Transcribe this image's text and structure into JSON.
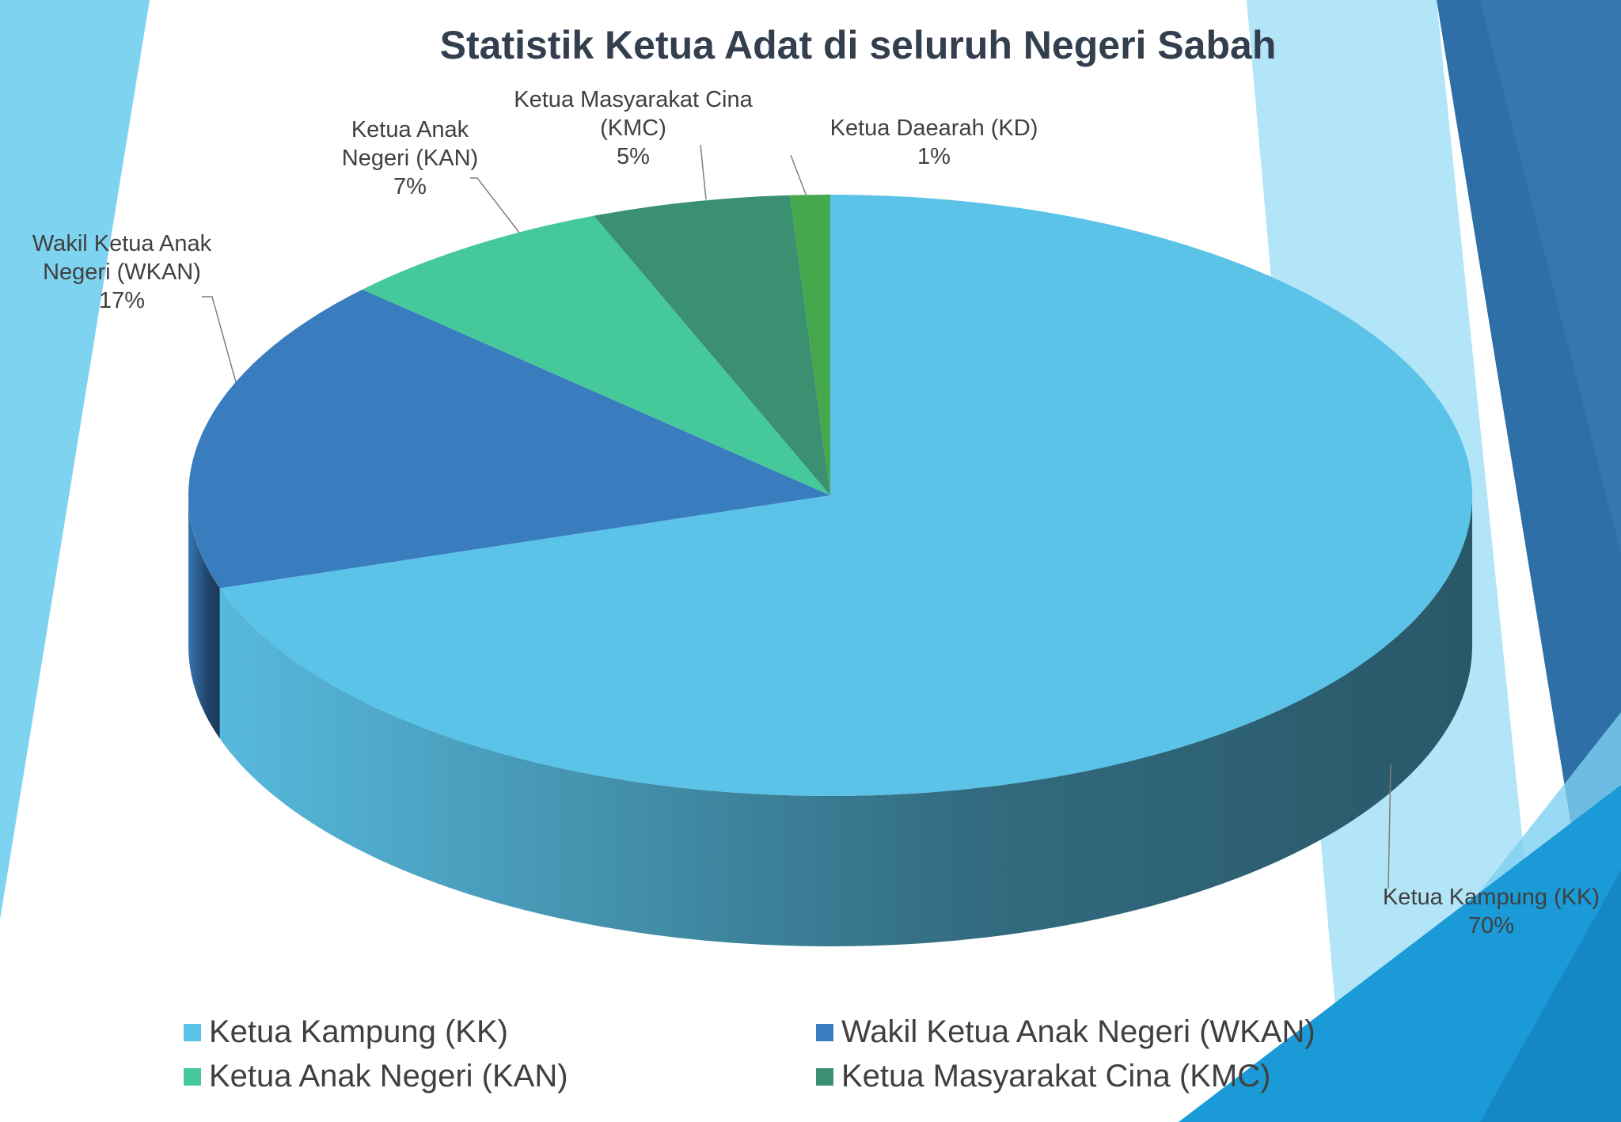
{
  "chart_data": {
    "type": "pie3d",
    "title": "Statistik Ketua Adat di seluruh Negeri Sabah",
    "categories": [
      "Ketua Kampung (KK)",
      "Wakil Ketua Anak Negeri (WKAN)",
      "Ketua Anak Negeri (KAN)",
      "Ketua Masyarakat Cina (KMC)",
      "Ketua Daearah (KD)"
    ],
    "values": [
      70,
      17,
      7,
      5,
      1
    ],
    "value_labels": [
      "70%",
      "17%",
      "7%",
      "5%",
      "1%"
    ],
    "colors": [
      "#5bc3e8",
      "#3a7dbf",
      "#45c99a",
      "#3a9070",
      "#45a84d"
    ],
    "legend": [
      "Ketua Kampung (KK)",
      "Wakil Ketua Anak Negeri (WKAN)",
      "Ketua Anak Negeri (KAN)",
      "Ketua Masyarakat Cina (KMC)"
    ]
  }
}
